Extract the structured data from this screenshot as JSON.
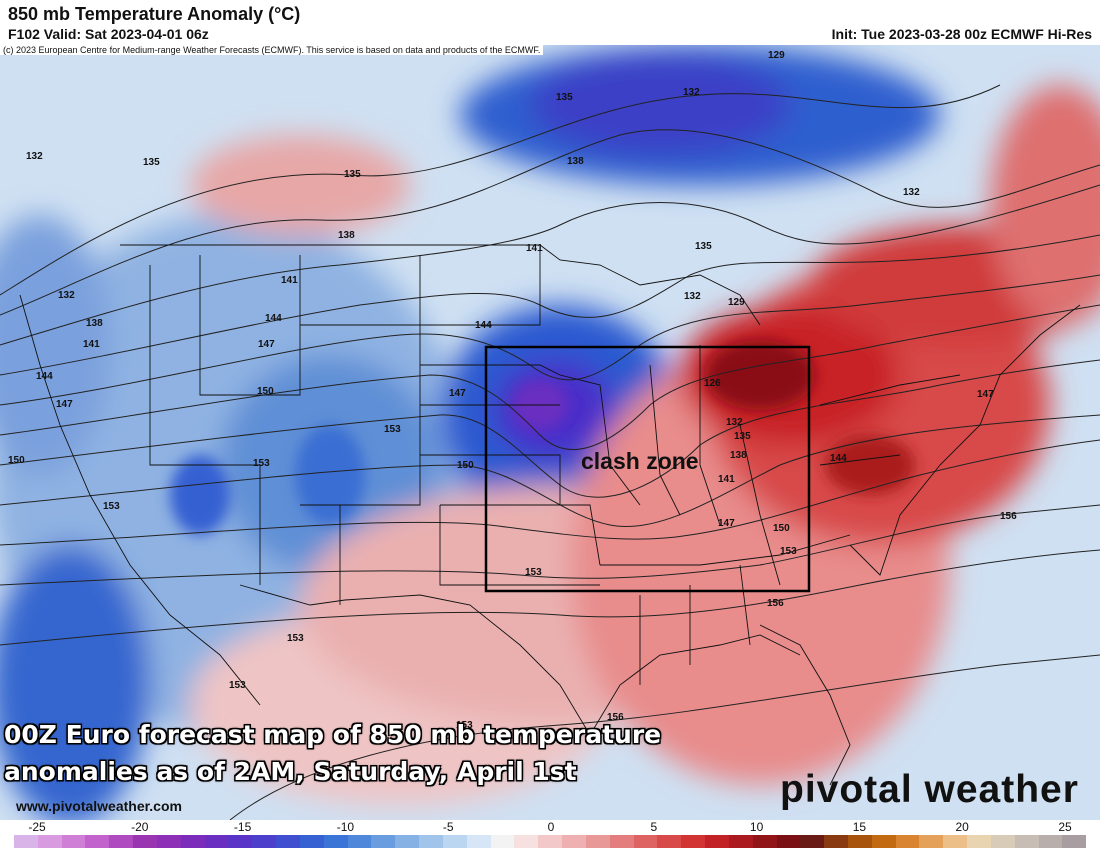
{
  "header": {
    "title": "850 mb Temperature Anomaly (°C)",
    "valid": "F102 Valid: Sat 2023-04-01 06z",
    "init": "Init: Tue 2023-03-28 00z ECMWF Hi-Res"
  },
  "copyright": "(c) 2023 European Centre for Medium-range Weather Forecasts (ECMWF). This service is based on data and products of the ECMWF.",
  "map": {
    "annotation_label": "clash zone",
    "caption_line1": "00Z Euro forecast map of 850 mb temperature",
    "caption_line2": "anomalies as of 2AM, Saturday, April 1st",
    "website": "www.pivotalweather.com",
    "brand": "pivotal weather",
    "contour_labels": [
      "132",
      "135",
      "138",
      "141",
      "144",
      "147",
      "150",
      "153",
      "156",
      "126",
      "129"
    ],
    "colors": {
      "cold_core": "#4a2fc9",
      "cold": "#2f62d1",
      "warm": "#d0262a",
      "warm_core": "#8a0e14"
    }
  },
  "colorbar": {
    "ticks": [
      "-25",
      "-20",
      "-15",
      "-10",
      "-5",
      "0",
      "5",
      "10",
      "15",
      "20",
      "25"
    ],
    "colors": [
      "#d8b4e8",
      "#d89be0",
      "#d07fd6",
      "#c262cc",
      "#b04ac0",
      "#9a35b2",
      "#8e2fb8",
      "#7b2cba",
      "#6a2fc0",
      "#5a34c6",
      "#4b3fcb",
      "#3f4fd0",
      "#3561d2",
      "#3a74d6",
      "#4f88da",
      "#6a9ddf",
      "#86b1e4",
      "#a1c4ea",
      "#bbd6f0",
      "#d6e6f6",
      "#f3f3f3",
      "#f6e0e0",
      "#f2c8c8",
      "#eeb0b0",
      "#e99898",
      "#e47e7e",
      "#de6464",
      "#d84a4a",
      "#d23434",
      "#c22226",
      "#aa1a1e",
      "#901418",
      "#7a1014",
      "#6a1a14",
      "#8a3a10",
      "#a8540c",
      "#c26a12",
      "#d88430",
      "#e4a15a",
      "#ecbf88",
      "#e8d4b0",
      "#d8cbb8",
      "#c8bdb4",
      "#b8aeac",
      "#a89ea2"
    ]
  }
}
